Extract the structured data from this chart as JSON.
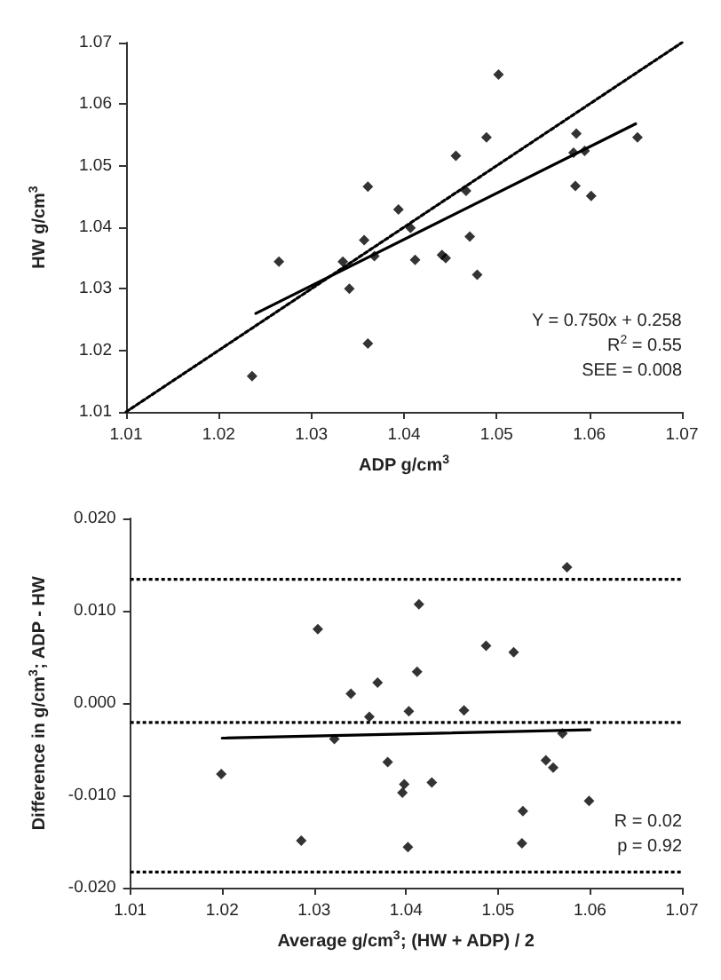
{
  "chart_data": [
    {
      "type": "scatter",
      "xlabel": "ADP g/cm$^{3}$",
      "ylabel": "HW g/cm$^{3}$",
      "xlim": [
        1.01,
        1.07
      ],
      "ylim": [
        1.01,
        1.07
      ],
      "xticks": [
        1.01,
        1.02,
        1.03,
        1.04,
        1.05,
        1.06,
        1.07
      ],
      "yticks": [
        1.01,
        1.02,
        1.03,
        1.04,
        1.05,
        1.06,
        1.07
      ],
      "grid": false,
      "marker": "diamond",
      "annotations": [
        "Y = 0.750x + 0.258",
        "R$^{2}$ = 0.55",
        "SEE = 0.008"
      ],
      "series": [
        {
          "color": "#000000",
          "x": [
            1.0236,
            1.0265,
            1.0334,
            1.0341,
            1.0361,
            1.0357,
            1.0368,
            1.0361,
            1.0394,
            1.0407,
            1.0412,
            1.0441,
            1.0445,
            1.0456,
            1.0467,
            1.0471,
            1.0479,
            1.0489,
            1.0502,
            1.0586,
            1.0583,
            1.0595,
            1.0585,
            1.0602,
            1.0652
          ],
          "values": [
            1.0158,
            1.0344,
            1.0344,
            1.03,
            1.0466,
            1.0379,
            1.0353,
            1.0211,
            1.0429,
            1.0399,
            1.0347,
            1.0355,
            1.035,
            1.0516,
            1.0459,
            1.0385,
            1.0323,
            1.0546,
            1.0648,
            1.0552,
            1.0521,
            1.0524,
            1.0467,
            1.0451,
            1.0546
          ]
        },
        {
          "type": "line",
          "color": "#000000",
          "marker": "none",
          "line_style": "solid",
          "x": [
            1.024,
            1.065
          ],
          "values": [
            1.026,
            1.0568
          ]
        },
        {
          "type": "line",
          "color": "#000000",
          "marker": "none",
          "line_style": "dotted",
          "x": [
            1.01,
            1.07
          ],
          "values": [
            1.01,
            1.07
          ]
        }
      ]
    },
    {
      "type": "scatter",
      "xlabel": "Average g/cm$^{3}$; (HW + ADP) / 2",
      "ylabel": "Difference in g/cm$^{3}$; ADP - HW",
      "xlim": [
        1.01,
        1.07
      ],
      "ylim": [
        -0.02,
        0.02
      ],
      "xticks": [
        1.01,
        1.02,
        1.03,
        1.04,
        1.05,
        1.06,
        1.07
      ],
      "yticks": [
        {
          "value": -0.02,
          "label": "-0.020"
        },
        {
          "value": -0.01,
          "label": "-0.010"
        },
        {
          "value": 0,
          "label": "0.000"
        },
        {
          "value": 0.01,
          "label": "0.010"
        },
        {
          "value": 0.02,
          "label": "0.020"
        }
      ],
      "grid": false,
      "marker": "diamond",
      "annotations": [
        "R = 0.02",
        "p = 0.92"
      ],
      "ref_lines": [
        {
          "axis": "y",
          "value": 0.0134,
          "color": "#000000",
          "line_style": "dotted"
        },
        {
          "axis": "y",
          "value": -0.0021,
          "color": "#000000",
          "line_style": "dotted"
        },
        {
          "axis": "y",
          "value": -0.0183,
          "color": "#000000",
          "line_style": "dotted"
        }
      ],
      "series": [
        {
          "color": "#000000",
          "x": [
            1.0199,
            1.0286,
            1.0304,
            1.0322,
            1.034,
            1.036,
            1.0369,
            1.038,
            1.0398,
            1.0396,
            1.0402,
            1.0403,
            1.0412,
            1.0414,
            1.0428,
            1.0463,
            1.0487,
            1.0517,
            1.0527,
            1.0526,
            1.0552,
            1.056,
            1.057,
            1.0575,
            1.0599
          ],
          "values": [
            -0.0077,
            -0.0149,
            0.008,
            -0.0039,
            0.001,
            -0.0015,
            0.0022,
            -0.0064,
            -0.0088,
            -0.0097,
            -0.0156,
            -0.0009,
            0.0034,
            0.0107,
            -0.0086,
            -0.0008,
            0.0062,
            0.0055,
            -0.0117,
            -0.0152,
            -0.0062,
            -0.007,
            -0.0033,
            0.0147,
            -0.0106
          ]
        },
        {
          "type": "line",
          "color": "#000000",
          "marker": "none",
          "line_style": "solid",
          "x": [
            1.02,
            1.06
          ],
          "values": [
            -0.0038,
            -0.0029
          ]
        }
      ]
    }
  ]
}
